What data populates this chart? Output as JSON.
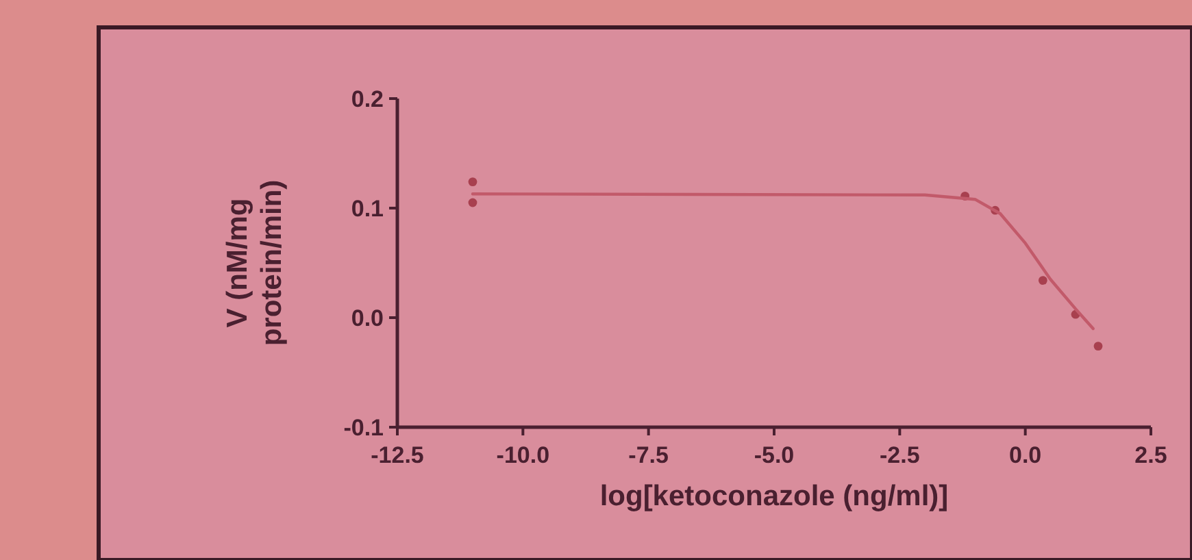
{
  "chart_data": {
    "type": "scatter",
    "xlabel": "log[ketoconazole (ng/ml)]",
    "ylabel": "V (nM/mg\nprotein/min)",
    "xlim": [
      -12.5,
      2.5
    ],
    "xticks": [
      -12.5,
      {
        "value": -10,
        "label": "-10.0"
      },
      -7.5,
      {
        "value": -5,
        "label": "-5.0"
      },
      -2.5,
      {
        "value": 0,
        "label": "0.0"
      },
      2.5
    ],
    "ylim": [
      -0.1,
      0.2
    ],
    "yticks": [
      {
        "value": -0.1,
        "label": "-0.1"
      },
      {
        "value": 0,
        "label": "0.0"
      },
      {
        "value": 0.1,
        "label": "0.1"
      },
      {
        "value": 0.2,
        "label": "0.2"
      }
    ],
    "grid": false,
    "series": [
      {
        "color": "#a8404f",
        "marker": "circle",
        "x": [
          -11,
          -11,
          -1.2,
          -0.6,
          0.35,
          1.0,
          1.45
        ],
        "values": [
          0.124,
          0.105,
          0.111,
          0.098,
          0.034,
          0.003,
          -0.026
        ]
      },
      {
        "type": "line",
        "color": "#c25a6a",
        "marker": "none",
        "line_style": "solid",
        "x": [
          -11,
          -2,
          -1,
          -0.5,
          0,
          0.5,
          1,
          1.35
        ],
        "values": [
          0.113,
          0.112,
          0.108,
          0.095,
          0.068,
          0.035,
          0.008,
          -0.01
        ]
      }
    ]
  }
}
